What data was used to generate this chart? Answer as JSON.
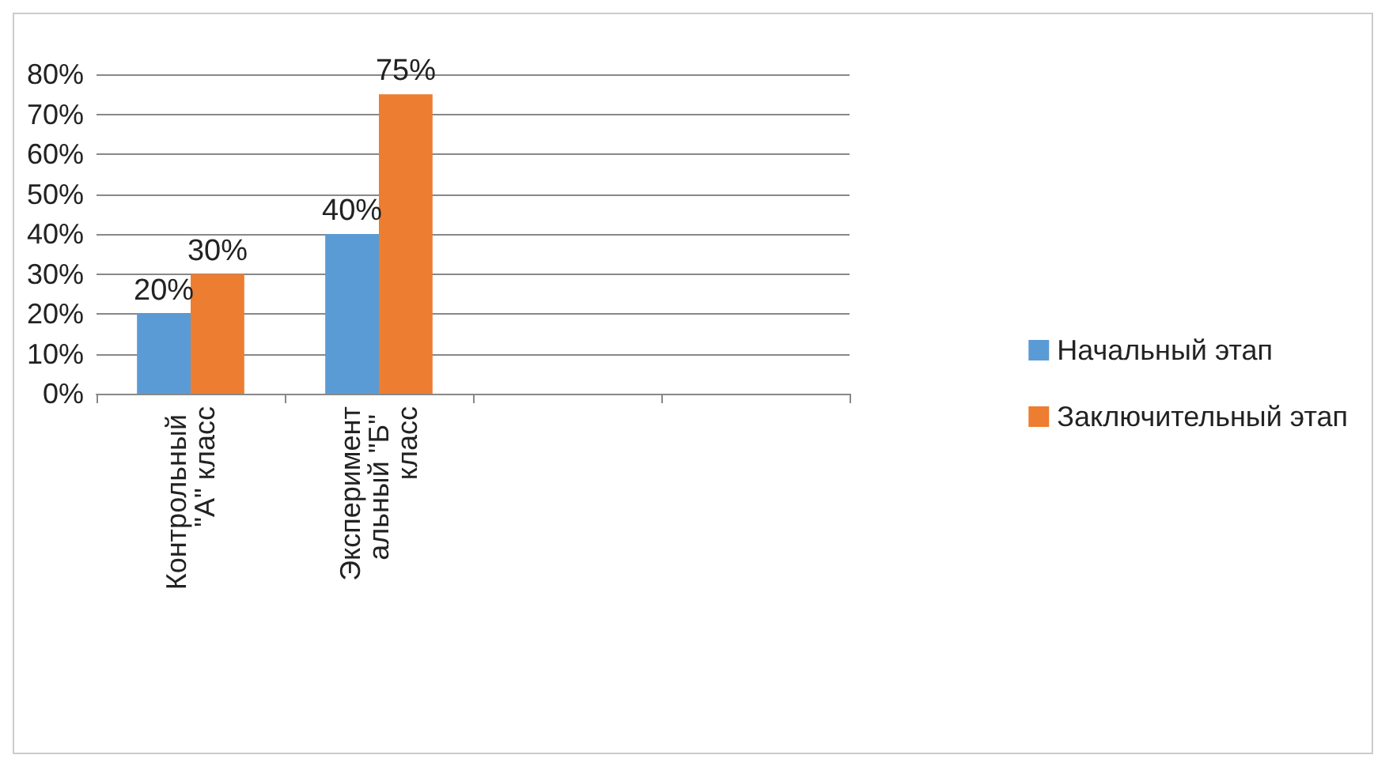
{
  "chart_data": {
    "type": "bar",
    "categories": [
      "Контрольный \"А\" класс",
      "Экспериментальный \"Б\" класс",
      null,
      null
    ],
    "series": [
      {
        "name": "Начальный этап",
        "color": "#5b9bd5",
        "values": [
          20,
          40,
          null,
          null
        ],
        "value_labels": [
          "20%",
          "40%",
          null,
          null
        ]
      },
      {
        "name": "Заключительный этап",
        "color": "#ed7d31",
        "values": [
          30,
          75,
          null,
          null
        ],
        "value_labels": [
          "30%",
          "75%",
          null,
          null
        ]
      }
    ],
    "ylim": [
      0,
      80
    ],
    "yticks": [
      {
        "value": 0,
        "label": "0%"
      },
      {
        "value": 10,
        "label": "10%"
      },
      {
        "value": 20,
        "label": "20%"
      },
      {
        "value": 30,
        "label": "30%"
      },
      {
        "value": 40,
        "label": "40%"
      },
      {
        "value": 50,
        "label": "50%"
      },
      {
        "value": 60,
        "label": "60%"
      },
      {
        "value": 70,
        "label": "70%"
      },
      {
        "value": 80,
        "label": "80%"
      }
    ],
    "grid": "y",
    "legend": "right"
  }
}
